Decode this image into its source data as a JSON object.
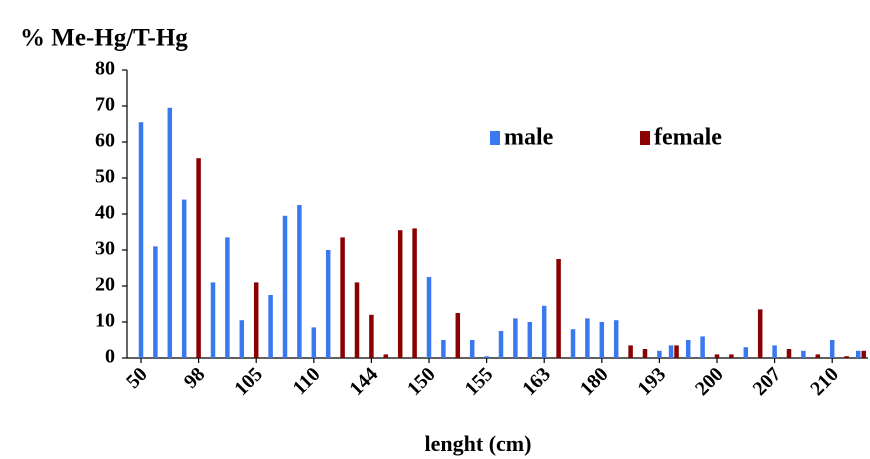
{
  "chart_data": {
    "type": "bar",
    "title": "% Me-Hg/T-Hg",
    "x_label": "lenght (cm)",
    "categories": [
      "50",
      null,
      null,
      null,
      "98",
      null,
      null,
      null,
      "105",
      null,
      null,
      null,
      "110",
      null,
      null,
      null,
      "144",
      null,
      null,
      null,
      "150",
      null,
      null,
      null,
      "155",
      null,
      null,
      null,
      "163",
      null,
      null,
      null,
      "180",
      null,
      null,
      null,
      "193",
      null,
      null,
      null,
      "200",
      null,
      null,
      null,
      "207",
      null,
      null,
      null,
      "210",
      null,
      null
    ],
    "series": [
      {
        "name": "male",
        "color": "#3a78f0",
        "values": [
          65.5,
          31,
          69.5,
          44,
          null,
          21,
          33.5,
          10.5,
          null,
          17.5,
          39.5,
          42.5,
          8.5,
          30,
          null,
          null,
          null,
          null,
          null,
          null,
          22.5,
          5,
          null,
          5,
          0.5,
          7.5,
          11,
          10,
          14.5,
          null,
          8,
          11,
          10,
          10.5,
          null,
          null,
          2,
          3.5,
          5,
          6,
          null,
          null,
          3,
          null,
          3.5,
          null,
          2,
          null,
          5,
          null,
          2
        ]
      },
      {
        "name": "female",
        "color": "#8b0000",
        "values": [
          null,
          null,
          null,
          null,
          55.5,
          null,
          null,
          null,
          21,
          null,
          null,
          null,
          null,
          null,
          33.5,
          21,
          12,
          1,
          35.5,
          36,
          null,
          null,
          12.5,
          null,
          null,
          null,
          null,
          null,
          null,
          27.5,
          null,
          null,
          null,
          null,
          3.5,
          2.5,
          null,
          3.5,
          null,
          null,
          1,
          1,
          null,
          13.5,
          null,
          2.5,
          null,
          1,
          null,
          0.5,
          2
        ]
      }
    ],
    "ylim": [
      0,
      80
    ],
    "yticks": [
      0,
      10,
      20,
      30,
      40,
      50,
      60,
      70,
      80
    ],
    "legend": "top-right"
  }
}
